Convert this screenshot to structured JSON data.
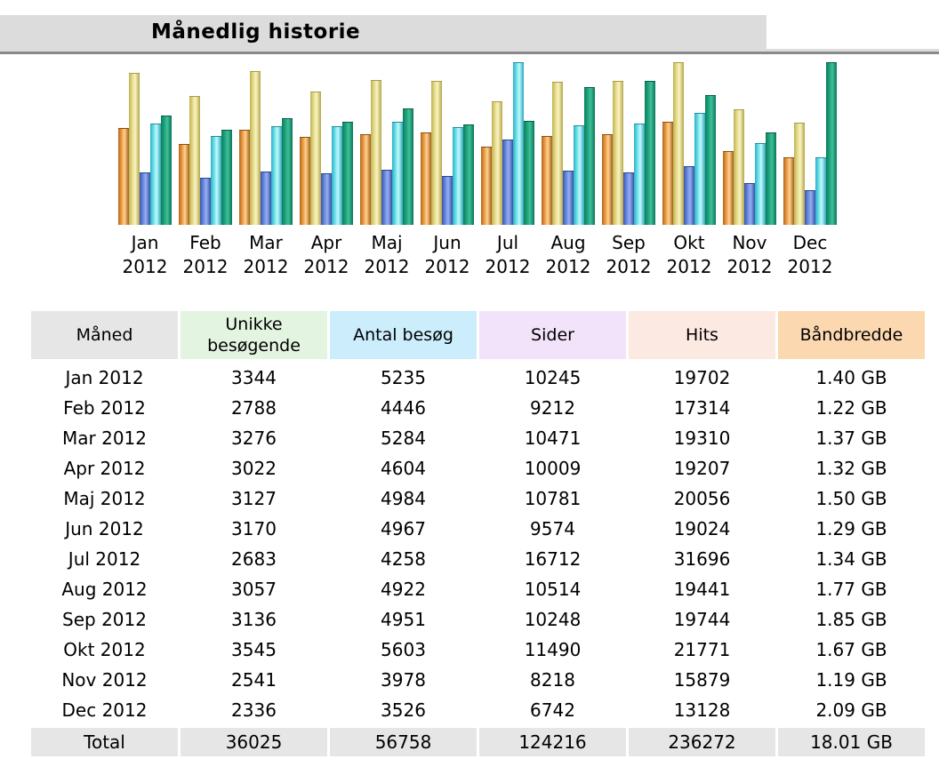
{
  "page": {
    "title": "Månedlig historie"
  },
  "chart_data": {
    "type": "bar",
    "title": "Månedlig historie",
    "categories": [
      "Jan 2012",
      "Feb 2012",
      "Mar 2012",
      "Apr 2012",
      "Maj 2012",
      "Jun 2012",
      "Jul 2012",
      "Aug 2012",
      "Sep 2012",
      "Okt 2012",
      "Nov 2012",
      "Dec 2012"
    ],
    "series": [
      {
        "name": "Unikke besøgende",
        "key": "unique-visitors",
        "scale_group": "visits",
        "values": [
          3344,
          2788,
          3276,
          3022,
          3127,
          3170,
          2683,
          3057,
          3136,
          3545,
          2541,
          2336
        ],
        "gradient": [
          "#b4671b",
          "#f0a24a",
          "#ffd293",
          "#a55e15"
        ],
        "cap": "#8a4f12"
      },
      {
        "name": "Antal besøg",
        "key": "visits",
        "scale_group": "visits",
        "values": [
          5235,
          4446,
          5284,
          4604,
          4984,
          4967,
          4258,
          4922,
          4951,
          5603,
          3978,
          3526
        ],
        "gradient": [
          "#bfb253",
          "#e9e092",
          "#f9f3c1",
          "#b3a64a"
        ],
        "cap": "#a79b45"
      },
      {
        "name": "Sider",
        "key": "pages",
        "scale_group": "pages_hits",
        "values": [
          10245,
          9212,
          10471,
          10009,
          10781,
          9574,
          16712,
          10514,
          10248,
          11490,
          8218,
          6742
        ],
        "gradient": [
          "#3a55b0",
          "#6e8ee2",
          "#97aff0",
          "#3450a8"
        ],
        "cap": "#2d4490"
      },
      {
        "name": "Hits",
        "key": "hits",
        "scale_group": "pages_hits",
        "values": [
          19702,
          17314,
          19310,
          19207,
          20056,
          19024,
          31696,
          19441,
          19744,
          21771,
          15879,
          13128
        ],
        "gradient": [
          "#2fafc0",
          "#72e6ef",
          "#c4f8fb",
          "#2aa9ba"
        ],
        "cap": "#1e8fa0"
      },
      {
        "name": "Båndbredde (GB)",
        "key": "bandwidth",
        "scale_group": "bandwidth",
        "values": [
          1.4,
          1.22,
          1.37,
          1.32,
          1.5,
          1.29,
          1.34,
          1.77,
          1.85,
          1.67,
          1.19,
          2.09
        ],
        "gradient": [
          "#0d7c5d",
          "#21a67e",
          "#3fc09a",
          "#0b7558"
        ],
        "cap": "#085c45"
      }
    ],
    "scaling": "each scale_group normalized to its own max",
    "grid": false,
    "legend_position": "none",
    "xlabel": "",
    "ylabel": ""
  },
  "table": {
    "columns": [
      {
        "key": "maaned",
        "label": "Måned",
        "label_lines": [
          "Måned"
        ],
        "bg": "#e6e6e6"
      },
      {
        "key": "unikke-besoegende",
        "label": "Unikke besøgende",
        "label_lines": [
          "Unikke",
          "besøgende"
        ],
        "bg": "#e3f4e0"
      },
      {
        "key": "antal-besoeg",
        "label": "Antal besøg",
        "label_lines": [
          "Antal besøg"
        ],
        "bg": "#cbedfc"
      },
      {
        "key": "sider",
        "label": "Sider",
        "label_lines": [
          "Sider"
        ],
        "bg": "#f2e3fa"
      },
      {
        "key": "hits",
        "label": "Hits",
        "label_lines": [
          "Hits"
        ],
        "bg": "#fce9e1"
      },
      {
        "key": "baandbredde",
        "label": "Båndbredde",
        "label_lines": [
          "Båndbredde"
        ],
        "bg": "#fbd8b0"
      }
    ],
    "rows": [
      [
        "Jan 2012",
        "3344",
        "5235",
        "10245",
        "19702",
        "1.40 GB"
      ],
      [
        "Feb 2012",
        "2788",
        "4446",
        "9212",
        "17314",
        "1.22 GB"
      ],
      [
        "Mar 2012",
        "3276",
        "5284",
        "10471",
        "19310",
        "1.37 GB"
      ],
      [
        "Apr 2012",
        "3022",
        "4604",
        "10009",
        "19207",
        "1.32 GB"
      ],
      [
        "Maj 2012",
        "3127",
        "4984",
        "10781",
        "20056",
        "1.50 GB"
      ],
      [
        "Jun 2012",
        "3170",
        "4967",
        "9574",
        "19024",
        "1.29 GB"
      ],
      [
        "Jul 2012",
        "2683",
        "4258",
        "16712",
        "31696",
        "1.34 GB"
      ],
      [
        "Aug 2012",
        "3057",
        "4922",
        "10514",
        "19441",
        "1.77 GB"
      ],
      [
        "Sep 2012",
        "3136",
        "4951",
        "10248",
        "19744",
        "1.85 GB"
      ],
      [
        "Okt 2012",
        "3545",
        "5603",
        "11490",
        "21771",
        "1.67 GB"
      ],
      [
        "Nov 2012",
        "2541",
        "3978",
        "8218",
        "15879",
        "1.19 GB"
      ],
      [
        "Dec 2012",
        "2336",
        "3526",
        "6742",
        "13128",
        "2.09 GB"
      ]
    ],
    "total_row": [
      "Total",
      "36025",
      "56758",
      "124216",
      "236272",
      "18.01 GB"
    ],
    "total_bg": "#e6e6e6"
  }
}
